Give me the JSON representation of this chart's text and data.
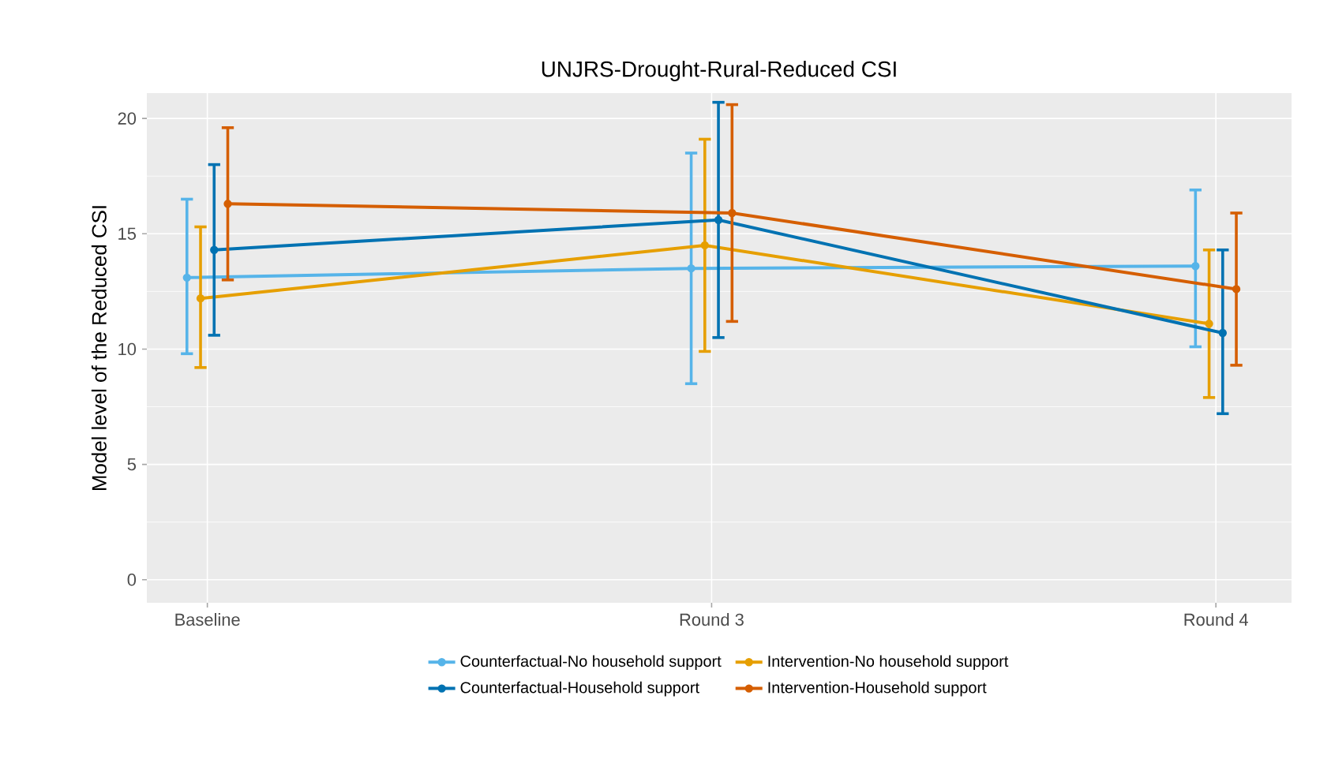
{
  "chart_data": {
    "type": "line",
    "title": "UNJRS-Drought-Rural-Reduced CSI",
    "ylabel": "Model level of the Reduced CSI",
    "categories": [
      "Baseline",
      "Round 3",
      "Round 4"
    ],
    "series": [
      {
        "name": "Counterfactual-No household support",
        "color": "#56b4e9",
        "values": [
          13.1,
          13.5,
          13.6
        ],
        "errors": [
          [
            9.8,
            16.5
          ],
          [
            8.5,
            18.5
          ],
          [
            10.1,
            16.9
          ]
        ]
      },
      {
        "name": "Intervention-No household support",
        "color": "#e69f00",
        "values": [
          12.2,
          14.5,
          11.1
        ],
        "errors": [
          [
            9.2,
            15.3
          ],
          [
            9.9,
            19.1
          ],
          [
            7.9,
            14.3
          ]
        ]
      },
      {
        "name": "Counterfactual-Household support",
        "color": "#0072b2",
        "values": [
          14.3,
          15.6,
          10.7
        ],
        "errors": [
          [
            10.6,
            18.0
          ],
          [
            10.5,
            20.7
          ],
          [
            7.2,
            14.3
          ]
        ]
      },
      {
        "name": "Intervention-Household support",
        "color": "#d55e00",
        "values": [
          16.3,
          15.9,
          12.6
        ],
        "errors": [
          [
            13.0,
            19.6
          ],
          [
            11.2,
            20.6
          ],
          [
            9.3,
            15.9
          ]
        ]
      }
    ],
    "ylim": [
      -1,
      21.1
    ],
    "yticks": [
      0,
      5,
      10,
      15,
      20
    ],
    "grid": true,
    "legend": "bottom",
    "marker": "circle",
    "line_style": "solid"
  }
}
